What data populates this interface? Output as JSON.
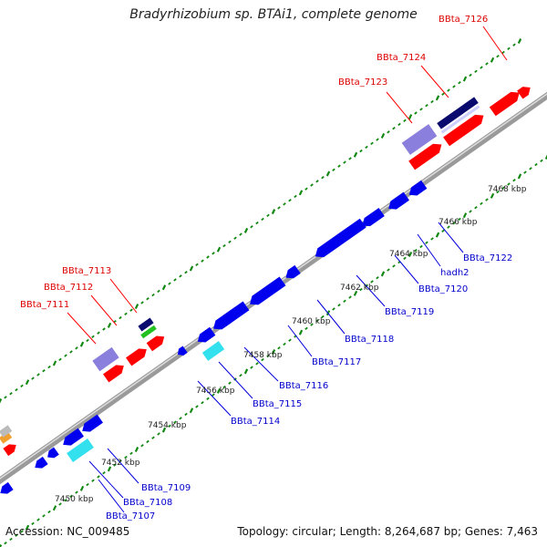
{
  "title": "Bradyrhizobium sp. BTAi1, complete genome",
  "footer": {
    "accession_label": "Accession:",
    "accession": "NC_009485",
    "topology_text": "Topology: circular; Length: 8,264,687 bp; Genes: 7,463"
  },
  "colors": {
    "forward_gene": "#ff0000",
    "reverse_gene": "#0000ee",
    "rna_light": "#8a7fdc",
    "rna_dark": "#0a0a6e",
    "cyan_gene": "#33e0ee",
    "green_gene": "#22c020",
    "tick_green": "#118811",
    "backbone": "#999999"
  },
  "kbp_ticks": [
    "7450 kbp",
    "7452 kbp",
    "7454 kbp",
    "7456 kbp",
    "7458 kbp",
    "7460 kbp",
    "7462 kbp",
    "7464 kbp",
    "7466 kbp",
    "7468 kbp"
  ],
  "forward_labels": [
    "BBta_7111",
    "BBta_7112",
    "BBta_7113",
    "BBta_7123",
    "BBta_7124",
    "BBta_7126"
  ],
  "reverse_labels": [
    "BBta_7107",
    "BBta_7108",
    "BBta_7109",
    "BBta_7114",
    "BBta_7115",
    "BBta_7116",
    "BBta_7117",
    "BBta_7118",
    "BBta_7119",
    "BBta_7120",
    "hadh2",
    "BBta_7122"
  ]
}
